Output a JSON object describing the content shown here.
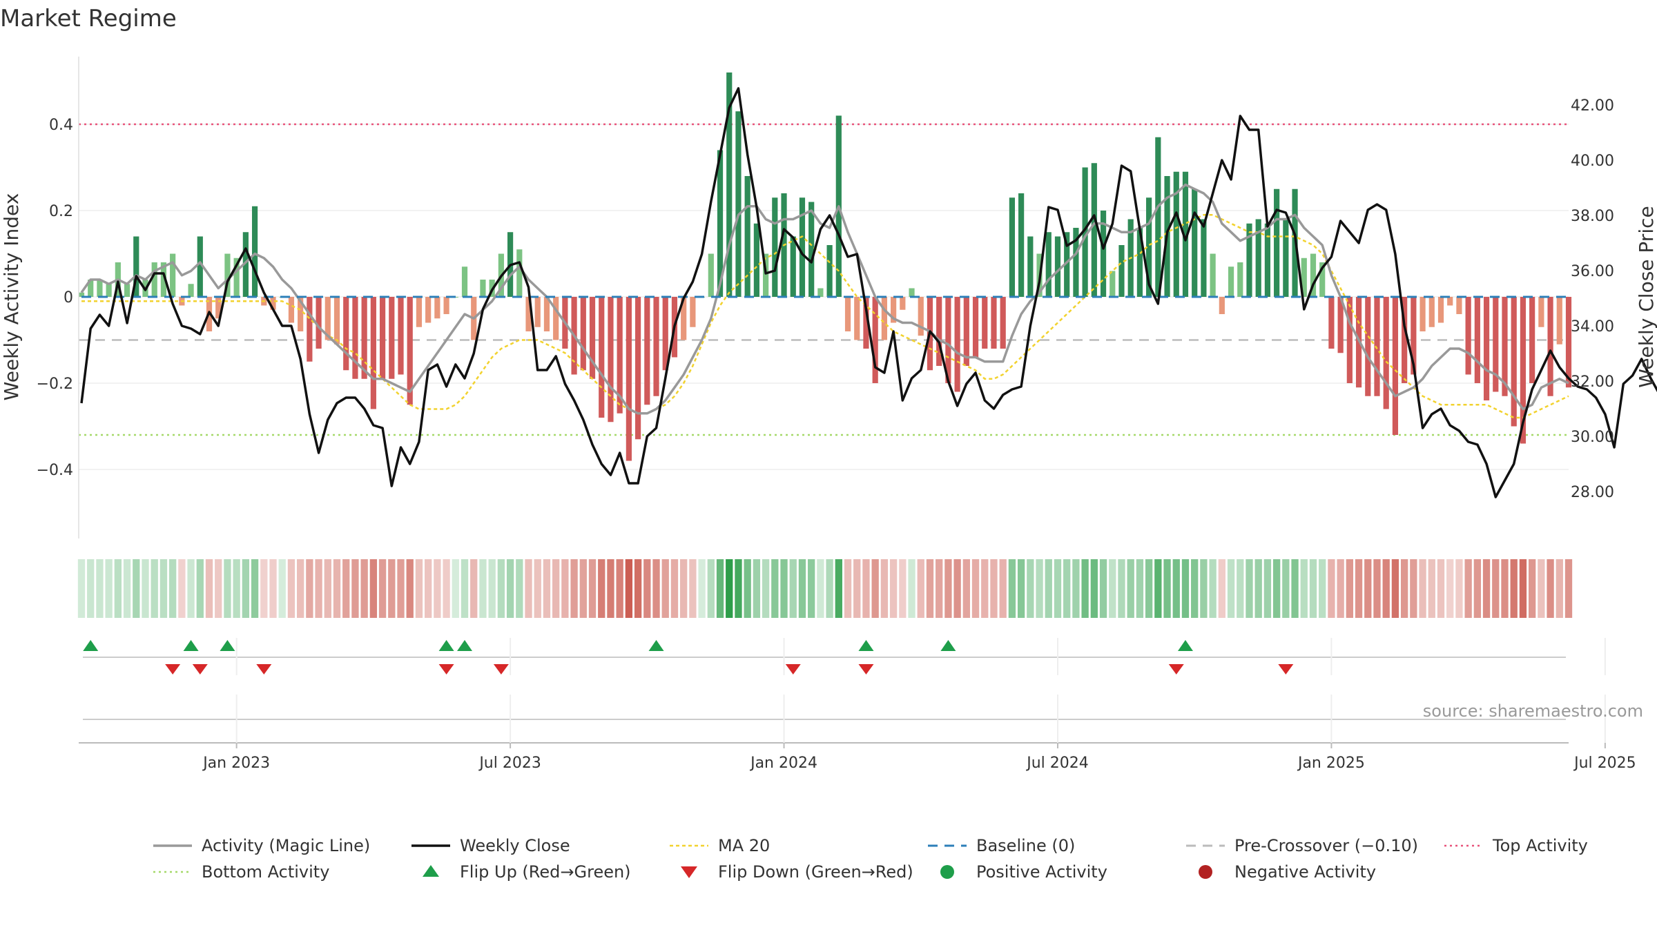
{
  "title": "Market Regime",
  "source": "source: sharemaestro.com",
  "colors": {
    "green_dark": "#2e8b57",
    "green_light": "#7cc383",
    "red_dark": "#d05a5a",
    "red_light": "#e8977a",
    "weekly_close": "#111111",
    "magic_line": "#999999",
    "ma20": "#f2d22e",
    "baseline": "#2c7fb8",
    "pre_crossover": "#bbbbbb",
    "top_activity": "#e8537a",
    "bottom_activity": "#a6d96a",
    "flip_up": "#1e9e4a",
    "flip_down": "#d62728"
  },
  "chart_data": {
    "type": "bar",
    "title": "Market Regime",
    "xlabel": "",
    "ylabel": "Weekly Activity Index",
    "y2label": "Weekly Close Price",
    "ylim": [
      -0.56,
      0.56
    ],
    "y2lim": [
      26.5,
      43.4
    ],
    "yticks": [
      {
        "value": 0.4,
        "label": "0.4"
      },
      {
        "value": 0.2,
        "label": "0.2"
      },
      {
        "value": 0,
        "label": "0"
      },
      {
        "value": -0.2,
        "label": "−0.2"
      },
      {
        "value": -0.4,
        "label": "−0.4"
      }
    ],
    "y2ticks": [
      {
        "value": 42,
        "label": "42.00"
      },
      {
        "value": 40,
        "label": "40.00"
      },
      {
        "value": 38,
        "label": "38.00"
      },
      {
        "value": 36,
        "label": "36.00"
      },
      {
        "value": 34,
        "label": "34.00"
      },
      {
        "value": 32,
        "label": "32.00"
      },
      {
        "value": 30,
        "label": "30.00"
      },
      {
        "value": 28,
        "label": "28.00"
      }
    ],
    "xticks": [
      {
        "week": 17,
        "label": "Jan 2023"
      },
      {
        "week": 47,
        "label": "Jul 2023"
      },
      {
        "week": 77,
        "label": "Jan 2024"
      },
      {
        "week": 107,
        "label": "Jul 2024"
      },
      {
        "week": 137,
        "label": "Jan 2025"
      },
      {
        "week": 167,
        "label": "Jul 2025"
      }
    ],
    "reference_lines": {
      "top_activity": 0.4,
      "bottom_activity": -0.32,
      "pre_crossover": -0.1,
      "baseline": 0
    },
    "activity": [
      0.01,
      0.04,
      0.04,
      0.03,
      0.08,
      0.03,
      0.14,
      0.04,
      0.08,
      0.08,
      0.1,
      -0.02,
      0.03,
      0.14,
      -0.08,
      -0.05,
      0.1,
      0.09,
      0.15,
      0.21,
      -0.02,
      -0.03,
      0,
      -0.06,
      -0.08,
      -0.15,
      -0.12,
      -0.1,
      -0.11,
      -0.17,
      -0.19,
      -0.19,
      -0.26,
      -0.19,
      -0.19,
      -0.18,
      -0.25,
      -0.07,
      -0.06,
      -0.05,
      -0.04,
      0,
      0.07,
      -0.1,
      0.04,
      0.04,
      0.1,
      0.15,
      0.11,
      -0.08,
      -0.07,
      -0.08,
      -0.1,
      -0.12,
      -0.18,
      -0.17,
      -0.19,
      -0.28,
      -0.29,
      -0.27,
      -0.38,
      -0.33,
      -0.25,
      -0.23,
      -0.17,
      -0.14,
      -0.1,
      -0.07,
      0,
      0.1,
      0.34,
      0.52,
      0.43,
      0.28,
      0.17,
      0.1,
      0.23,
      0.24,
      0.14,
      0.23,
      0.22,
      0.02,
      0.12,
      0.42,
      -0.08,
      -0.1,
      -0.12,
      -0.2,
      -0.1,
      -0.06,
      -0.03,
      0.02,
      -0.09,
      -0.17,
      -0.16,
      -0.2,
      -0.22,
      -0.16,
      -0.14,
      -0.12,
      -0.12,
      -0.12,
      0.23,
      0.24,
      0.14,
      0.1,
      0.15,
      0.14,
      0.15,
      0.16,
      0.3,
      0.31,
      0.2,
      0.06,
      0.12,
      0.18,
      0.16,
      0.23,
      0.37,
      0.28,
      0.29,
      0.29,
      0.25,
      0.18,
      0.1,
      -0.04,
      0.07,
      0.08,
      0.17,
      0.18,
      0.17,
      0.25,
      0.18,
      0.25,
      0.09,
      0.1,
      0.08,
      -0.12,
      -0.13,
      -0.2,
      -0.21,
      -0.23,
      -0.23,
      -0.26,
      -0.32,
      -0.2,
      -0.18,
      -0.08,
      -0.07,
      -0.06,
      -0.02,
      -0.04,
      -0.18,
      -0.2,
      -0.24,
      -0.22,
      -0.23,
      -0.3,
      -0.34,
      -0.2,
      -0.07,
      -0.23,
      -0.11,
      -0.21
    ],
    "weekly_close": [
      31.2,
      33.9,
      34.4,
      34.0,
      35.6,
      34.1,
      35.8,
      35.3,
      35.9,
      35.9,
      34.8,
      34.0,
      33.9,
      33.7,
      34.5,
      34.0,
      35.6,
      36.2,
      36.8,
      36.0,
      35.2,
      34.6,
      34.0,
      34.0,
      32.8,
      30.8,
      29.4,
      30.6,
      31.2,
      31.4,
      31.4,
      31.0,
      30.4,
      30.3,
      28.2,
      29.6,
      29.0,
      29.8,
      32.4,
      32.6,
      31.8,
      32.6,
      32.1,
      33.0,
      34.6,
      35.3,
      35.8,
      36.2,
      36.3,
      35.4,
      32.4,
      32.4,
      32.9,
      31.9,
      31.3,
      30.6,
      29.7,
      29.0,
      28.6,
      29.4,
      28.3,
      28.3,
      30.0,
      30.3,
      32.1,
      34.0,
      35.0,
      35.6,
      36.6,
      38.5,
      40.2,
      41.9,
      42.6,
      40.2,
      38.3,
      35.9,
      36.0,
      37.5,
      37.2,
      36.6,
      36.3,
      37.5,
      38.0,
      37.3,
      36.5,
      36.6,
      34.6,
      32.5,
      32.3,
      33.8,
      31.3,
      32.1,
      32.4,
      33.8,
      33.4,
      32.0,
      31.1,
      31.9,
      32.3,
      31.3,
      31.0,
      31.5,
      31.7,
      31.8,
      34.0,
      35.6,
      38.3,
      38.2,
      36.9,
      37.1,
      37.5,
      38.0,
      36.8,
      37.7,
      39.8,
      39.6,
      37.5,
      35.5,
      34.8,
      37.4,
      38.1,
      37.1,
      38.1,
      37.6,
      38.8,
      40.0,
      39.3,
      41.6,
      41.1,
      41.1,
      37.6,
      38.2,
      38.1,
      37.3,
      34.6,
      35.5,
      36.1,
      36.5,
      37.8,
      37.4,
      37.0,
      38.2,
      38.4,
      38.2,
      36.6,
      34.0,
      32.6,
      30.3,
      30.8,
      31.0,
      30.4,
      30.2,
      29.8,
      29.7,
      29.0,
      27.8,
      28.4,
      29.0,
      30.5,
      31.7,
      32.4,
      33.1,
      32.5,
      32.1,
      31.8,
      31.7,
      31.4,
      30.8,
      29.6,
      31.9,
      32.2,
      32.8,
      32.1,
      31.5
    ],
    "magic_line": [
      0.01,
      0.04,
      0.04,
      0.03,
      0.04,
      0.03,
      0.05,
      0.04,
      0.06,
      0.07,
      0.08,
      0.05,
      0.06,
      0.08,
      0.05,
      0.02,
      0.04,
      0.06,
      0.08,
      0.1,
      0.09,
      0.07,
      0.04,
      0.02,
      -0.01,
      -0.04,
      -0.07,
      -0.09,
      -0.11,
      -0.13,
      -0.15,
      -0.17,
      -0.19,
      -0.19,
      -0.2,
      -0.21,
      -0.22,
      -0.19,
      -0.16,
      -0.13,
      -0.1,
      -0.07,
      -0.04,
      -0.05,
      -0.03,
      -0.01,
      0.02,
      0.05,
      0.07,
      0.04,
      0.02,
      0,
      -0.03,
      -0.06,
      -0.09,
      -0.12,
      -0.15,
      -0.18,
      -0.21,
      -0.23,
      -0.26,
      -0.27,
      -0.27,
      -0.26,
      -0.24,
      -0.21,
      -0.18,
      -0.14,
      -0.1,
      -0.05,
      0.03,
      0.12,
      0.19,
      0.21,
      0.21,
      0.18,
      0.17,
      0.18,
      0.18,
      0.19,
      0.2,
      0.17,
      0.16,
      0.21,
      0.15,
      0.1,
      0.05,
      0,
      -0.03,
      -0.05,
      -0.06,
      -0.06,
      -0.07,
      -0.08,
      -0.1,
      -0.11,
      -0.13,
      -0.14,
      -0.14,
      -0.15,
      -0.15,
      -0.15,
      -0.09,
      -0.04,
      -0.01,
      0.01,
      0.04,
      0.06,
      0.08,
      0.1,
      0.14,
      0.17,
      0.17,
      0.16,
      0.15,
      0.15,
      0.16,
      0.17,
      0.21,
      0.23,
      0.24,
      0.26,
      0.25,
      0.24,
      0.22,
      0.17,
      0.15,
      0.13,
      0.14,
      0.15,
      0.16,
      0.18,
      0.18,
      0.19,
      0.16,
      0.14,
      0.12,
      0.05,
      0,
      -0.06,
      -0.1,
      -0.14,
      -0.17,
      -0.2,
      -0.23,
      -0.22,
      -0.21,
      -0.19,
      -0.16,
      -0.14,
      -0.12,
      -0.12,
      -0.13,
      -0.15,
      -0.17,
      -0.18,
      -0.2,
      -0.23,
      -0.26,
      -0.25,
      -0.21,
      -0.2,
      -0.19,
      -0.2
    ],
    "ma20": [
      -0.01,
      -0.01,
      -0.01,
      -0.01,
      -0.01,
      -0.01,
      -0.01,
      -0.01,
      -0.01,
      -0.01,
      -0.01,
      -0.01,
      -0.01,
      -0.01,
      -0.01,
      -0.01,
      -0.01,
      -0.01,
      -0.01,
      -0.01,
      -0.01,
      -0.01,
      -0.01,
      -0.02,
      -0.03,
      -0.05,
      -0.07,
      -0.09,
      -0.1,
      -0.12,
      -0.13,
      -0.15,
      -0.17,
      -0.19,
      -0.21,
      -0.23,
      -0.25,
      -0.26,
      -0.26,
      -0.26,
      -0.26,
      -0.25,
      -0.23,
      -0.2,
      -0.17,
      -0.14,
      -0.12,
      -0.11,
      -0.1,
      -0.1,
      -0.1,
      -0.11,
      -0.12,
      -0.13,
      -0.15,
      -0.17,
      -0.19,
      -0.21,
      -0.23,
      -0.25,
      -0.26,
      -0.27,
      -0.27,
      -0.26,
      -0.25,
      -0.23,
      -0.2,
      -0.16,
      -0.11,
      -0.06,
      -0.02,
      0.01,
      0.03,
      0.05,
      0.07,
      0.09,
      0.1,
      0.12,
      0.13,
      0.14,
      0.12,
      0.1,
      0.08,
      0.06,
      0.03,
      0,
      -0.02,
      -0.04,
      -0.06,
      -0.08,
      -0.09,
      -0.1,
      -0.11,
      -0.12,
      -0.13,
      -0.14,
      -0.15,
      -0.16,
      -0.17,
      -0.19,
      -0.19,
      -0.18,
      -0.16,
      -0.14,
      -0.12,
      -0.1,
      -0.08,
      -0.06,
      -0.04,
      -0.02,
      0,
      0.02,
      0.04,
      0.06,
      0.08,
      0.09,
      0.1,
      0.12,
      0.13,
      0.15,
      0.16,
      0.17,
      0.18,
      0.19,
      0.19,
      0.18,
      0.17,
      0.16,
      0.15,
      0.15,
      0.14,
      0.14,
      0.14,
      0.14,
      0.13,
      0.12,
      0.1,
      0.06,
      0.02,
      -0.02,
      -0.06,
      -0.09,
      -0.12,
      -0.15,
      -0.17,
      -0.19,
      -0.21,
      -0.23,
      -0.24,
      -0.25,
      -0.25,
      -0.25,
      -0.25,
      -0.25,
      -0.25,
      -0.26,
      -0.27,
      -0.28,
      -0.28,
      -0.27,
      -0.26,
      -0.25,
      -0.24,
      -0.23
    ],
    "flip_up_weeks": [
      1,
      12,
      16,
      40,
      42,
      63,
      86,
      95,
      121
    ],
    "flip_down_weeks": [
      10,
      13,
      20,
      40,
      46,
      78,
      86,
      120,
      132
    ],
    "legend": [
      {
        "key": "magic",
        "label": "Activity (Magic Line)"
      },
      {
        "key": "close",
        "label": "Weekly Close"
      },
      {
        "key": "ma20",
        "label": "MA 20"
      },
      {
        "key": "baseline",
        "label": "Baseline (0)"
      },
      {
        "key": "precross",
        "label": "Pre-Crossover (−0.10)"
      },
      {
        "key": "top",
        "label": "Top Activity"
      },
      {
        "key": "bottom",
        "label": "Bottom Activity"
      },
      {
        "key": "flipup",
        "label": "Flip Up (Red→Green)"
      },
      {
        "key": "flipdown",
        "label": "Flip Down (Green→Red)"
      },
      {
        "key": "pos",
        "label": "Positive Activity"
      },
      {
        "key": "neg",
        "label": "Negative Activity"
      }
    ]
  }
}
